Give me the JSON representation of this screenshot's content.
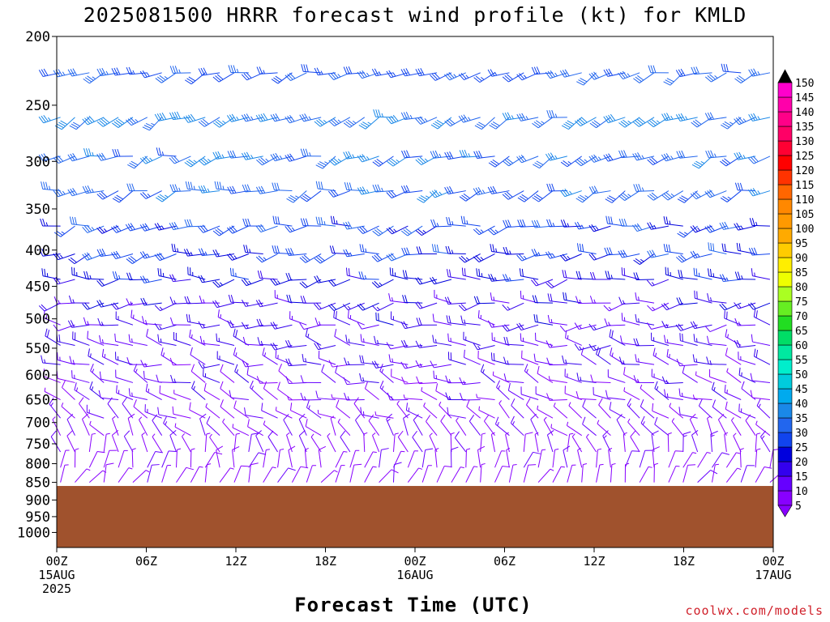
{
  "title": "2025081500 HRRR forecast wind profile (kt) for KMLD",
  "credit": "coolwx.com/models",
  "chart_data": {
    "type": "wind-barb time-height section",
    "title": "2025081500 HRRR forecast wind profile (kt) for KMLD",
    "xlabel": "Forecast Time (UTC)",
    "ylabel": "",
    "x_range_hours": [
      0,
      48
    ],
    "x_ticks": [
      {
        "hour": 0,
        "label": [
          "00Z",
          "15AUG",
          "2025"
        ]
      },
      {
        "hour": 6,
        "label": [
          "06Z"
        ]
      },
      {
        "hour": 12,
        "label": [
          "12Z"
        ]
      },
      {
        "hour": 18,
        "label": [
          "18Z"
        ]
      },
      {
        "hour": 24,
        "label": [
          "00Z",
          "16AUG"
        ]
      },
      {
        "hour": 30,
        "label": [
          "06Z"
        ]
      },
      {
        "hour": 36,
        "label": [
          "12Z"
        ]
      },
      {
        "hour": 42,
        "label": [
          "18Z"
        ]
      },
      {
        "hour": 48,
        "label": [
          "00Z",
          "17AUG"
        ]
      }
    ],
    "y_range_hpa": [
      1050,
      200
    ],
    "y_scale": "log pressure",
    "y_ticks": [
      200,
      250,
      300,
      350,
      400,
      450,
      500,
      550,
      600,
      650,
      700,
      750,
      800,
      850,
      900,
      950,
      1000
    ],
    "surface_pressure_hpa": 860,
    "ground_color": "#a0522d",
    "colorbar": {
      "levels": [
        5,
        10,
        15,
        20,
        25,
        30,
        35,
        40,
        45,
        50,
        55,
        60,
        65,
        70,
        75,
        80,
        85,
        90,
        95,
        100,
        105,
        110,
        115,
        120,
        125,
        130,
        135,
        140,
        145,
        150
      ],
      "colors": [
        "#8800ff",
        "#6600ff",
        "#3300ee",
        "#0000dd",
        "#1144ee",
        "#2266ee",
        "#1a88e8",
        "#00aaee",
        "#00ccdd",
        "#00eecc",
        "#00e8a0",
        "#00dd66",
        "#22dd22",
        "#66ee22",
        "#aaff22",
        "#eeff00",
        "#ffee00",
        "#ffcc00",
        "#ffaa00",
        "#ff9900",
        "#ff8800",
        "#ff6600",
        "#ff3300",
        "#ff0000",
        "#ff0033",
        "#ff0066",
        "#ff0088",
        "#ff00aa",
        "#ff00cc",
        "#ee00dd"
      ]
    },
    "wind_levels": [
      {
        "p": 225,
        "dir": 250,
        "spd": 30
      },
      {
        "p": 260,
        "dir": 248,
        "spd": 35
      },
      {
        "p": 295,
        "dir": 250,
        "spd": 32
      },
      {
        "p": 330,
        "dir": 252,
        "spd": 32
      },
      {
        "p": 370,
        "dir": 255,
        "spd": 28
      },
      {
        "p": 405,
        "dir": 258,
        "spd": 26
      },
      {
        "p": 440,
        "dir": 262,
        "spd": 22
      },
      {
        "p": 475,
        "dir": 268,
        "spd": 18
      },
      {
        "p": 510,
        "dir": 272,
        "spd": 16
      },
      {
        "p": 545,
        "dir": 278,
        "spd": 15
      },
      {
        "p": 580,
        "dir": 282,
        "spd": 14
      },
      {
        "p": 615,
        "dir": 288,
        "spd": 12
      },
      {
        "p": 650,
        "dir": 292,
        "spd": 11
      },
      {
        "p": 690,
        "dir": 300,
        "spd": 10
      },
      {
        "p": 730,
        "dir": 320,
        "spd": 9
      },
      {
        "p": 770,
        "dir": 345,
        "spd": 8
      },
      {
        "p": 810,
        "dir": 10,
        "spd": 7
      },
      {
        "p": 850,
        "dir": 25,
        "spd": 6
      }
    ]
  }
}
